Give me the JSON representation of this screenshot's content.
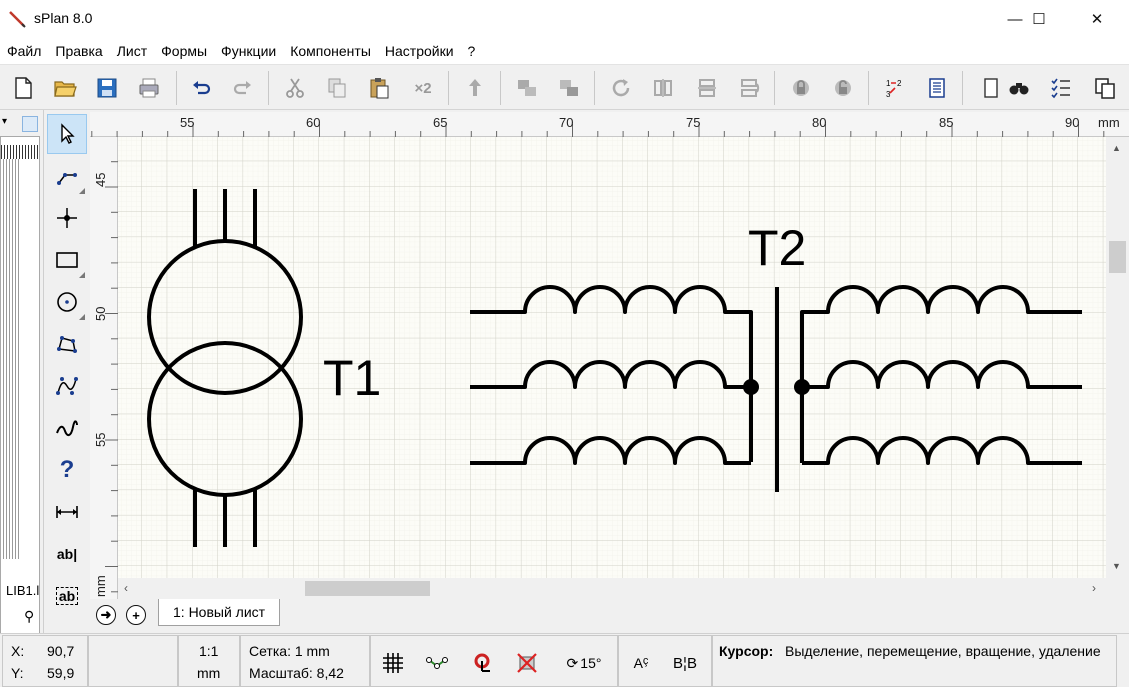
{
  "window": {
    "title": "sPlan 8.0",
    "minimize": "—",
    "maximize": "☐",
    "close": "✕"
  },
  "menu": [
    "Файл",
    "Правка",
    "Лист",
    "Формы",
    "Функции",
    "Компоненты",
    "Настройки",
    "?"
  ],
  "toolbar": {
    "buttons": [
      "new-file",
      "open-folder",
      "save",
      "print",
      "undo",
      "redo",
      "cut",
      "copy",
      "paste",
      "duplicate-x2",
      "bring-to-front",
      "group",
      "ungroup",
      "rotate",
      "mirror-horizontal",
      "mirror-vertical",
      "rotate-mirror",
      "lock",
      "unlock",
      "numbering",
      "parts-list",
      "page",
      "search",
      "checklist",
      "copy-window"
    ],
    "duplicate_label": "×2"
  },
  "library": {
    "label": "LIB1.l"
  },
  "rulers": {
    "unit": "mm",
    "top_labels": [
      "55",
      "60",
      "65",
      "70",
      "75",
      "80",
      "85",
      "90"
    ],
    "left_labels": [
      "45",
      "50",
      "55"
    ],
    "left_unit": "mm"
  },
  "schematic": {
    "labels": [
      "T1",
      "T2"
    ]
  },
  "tabs": {
    "sheet": "1: Новый лист"
  },
  "status": {
    "x_label": "X:",
    "x_value": "90,7",
    "y_label": "Y:",
    "y_value": "59,9",
    "scale_ratio": "1:1",
    "scale_unit": "mm",
    "grid": "Сетка: 1 mm",
    "zoom": "Масштаб: 8,42",
    "angle": "15°",
    "cursor_label": "Курсор:",
    "cursor_text": "Выделение, перемещение, вращение, удаление"
  },
  "colors": {
    "canvas": "#fcfcf7",
    "grid": "#d9d9d0",
    "accent": "#0078d7"
  }
}
